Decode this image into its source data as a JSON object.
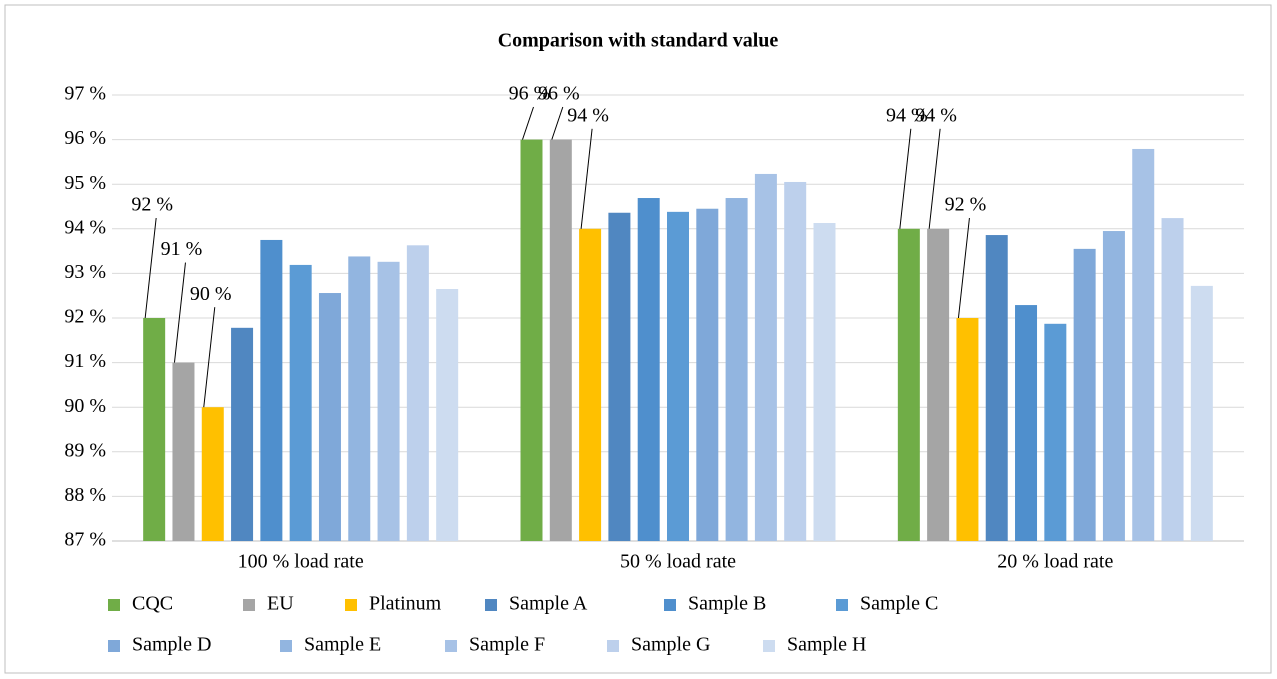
{
  "chart_data": {
    "type": "bar",
    "title": "Comparison with standard value",
    "categories": [
      "100 % load rate",
      "50 % load rate",
      "20 % load rate"
    ],
    "series": [
      {
        "name": "CQC",
        "color": "#70ad47",
        "values": [
          92,
          96,
          94
        ],
        "value_labels": [
          "92 %",
          "96 %",
          "94 %"
        ]
      },
      {
        "name": "EU",
        "color": "#a5a5a5",
        "values": [
          91,
          96,
          94
        ],
        "value_labels": [
          "91 %",
          "96 %",
          "94 %"
        ]
      },
      {
        "name": "Platinum",
        "color": "#ffc000",
        "values": [
          90,
          94,
          92
        ],
        "value_labels": [
          "90 %",
          "94 %",
          "92 %"
        ]
      },
      {
        "name": "Sample A",
        "color": "#5087c1",
        "values": [
          91.78,
          94.36,
          93.86
        ]
      },
      {
        "name": "Sample B",
        "color": "#4f8fcd",
        "values": [
          93.75,
          94.69,
          92.29
        ]
      },
      {
        "name": "Sample C",
        "color": "#5b9bd5",
        "values": [
          93.19,
          94.38,
          91.87
        ]
      },
      {
        "name": "Sample D",
        "color": "#7fa8d9",
        "values": [
          92.56,
          94.45,
          93.55
        ]
      },
      {
        "name": "Sample E",
        "color": "#92b5e0",
        "values": [
          93.38,
          94.69,
          93.95
        ]
      },
      {
        "name": "Sample F",
        "color": "#a7c2e6",
        "values": [
          93.26,
          95.23,
          95.79
        ]
      },
      {
        "name": "Sample G",
        "color": "#bdd0ec",
        "values": [
          93.63,
          95.05,
          94.24
        ]
      },
      {
        "name": "Sample H",
        "color": "#cddcf0",
        "values": [
          92.65,
          94.13,
          92.72
        ]
      }
    ],
    "ylim": [
      87,
      97
    ],
    "yticks": [
      {
        "value": 87,
        "label": "87 %"
      },
      {
        "value": 88,
        "label": "88 %"
      },
      {
        "value": 89,
        "label": "89 %"
      },
      {
        "value": 90,
        "label": "90 %"
      },
      {
        "value": 91,
        "label": "91 %"
      },
      {
        "value": 92,
        "label": "92 %"
      },
      {
        "value": 93,
        "label": "93 %"
      },
      {
        "value": 94,
        "label": "94 %"
      },
      {
        "value": 95,
        "label": "95 %"
      },
      {
        "value": 96,
        "label": "96 %"
      },
      {
        "value": 97,
        "label": "97 %"
      }
    ],
    "grid": true,
    "legend": "bottom"
  }
}
